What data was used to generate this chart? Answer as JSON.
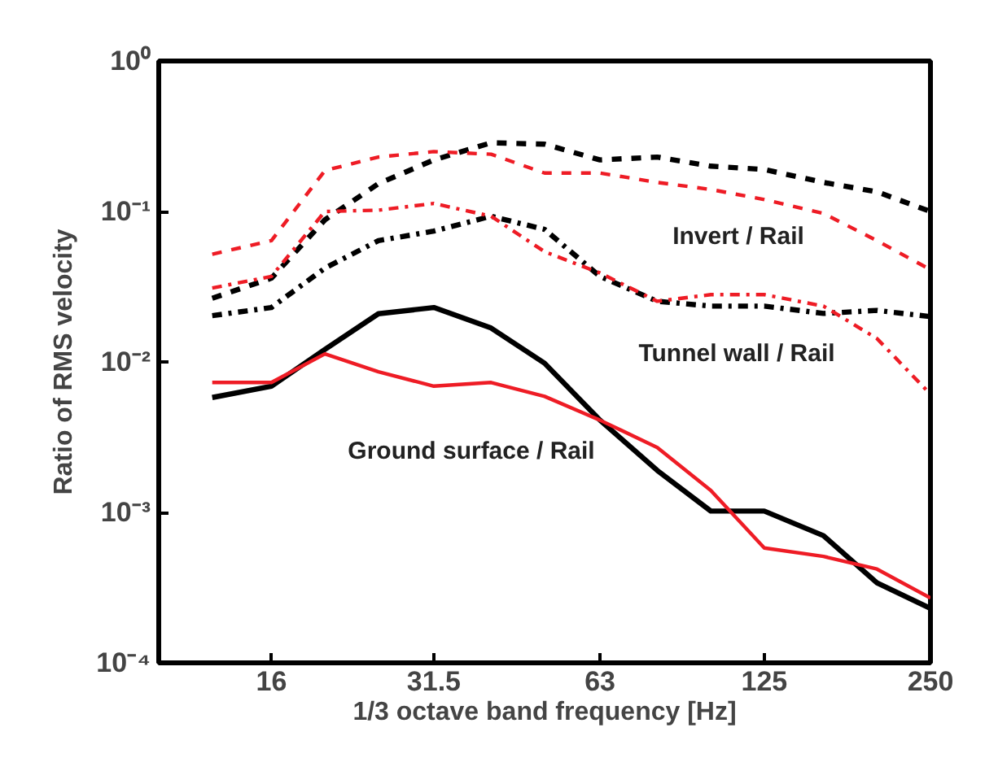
{
  "chart_data": {
    "type": "line",
    "xlabel": "1/3 octave band frequency [Hz]",
    "ylabel": "Ratio of RMS velocity",
    "x": [
      12.5,
      16,
      20,
      25,
      31.5,
      40,
      50,
      63,
      80,
      100,
      125,
      160,
      200,
      250
    ],
    "log": "xy",
    "xlim": [
      10,
      250
    ],
    "xticks": [
      16,
      31.5,
      63,
      125,
      250
    ],
    "ylim": [
      0.0001,
      1
    ],
    "yticks": [
      {
        "value": 0.0001,
        "label": "10⁻⁴"
      },
      {
        "value": 0.001,
        "label": "10⁻³"
      },
      {
        "value": 0.01,
        "label": "10⁻²"
      },
      {
        "value": 0.1,
        "label": "10⁻¹"
      },
      {
        "value": 1,
        "label": "10⁰"
      }
    ],
    "series": [
      {
        "color": "#000000",
        "line_style": "dashed",
        "values": [
          0.0265,
          0.036,
          0.088,
          0.153,
          0.22,
          0.286,
          0.28,
          0.22,
          0.23,
          0.2,
          0.19,
          0.156,
          0.135,
          0.1
        ]
      },
      {
        "color": "#ee1c25",
        "line_style": "dashed",
        "values": [
          0.052,
          0.064,
          0.187,
          0.23,
          0.25,
          0.24,
          0.18,
          0.18,
          0.156,
          0.14,
          0.12,
          0.097,
          0.064,
          0.041
        ]
      },
      {
        "color": "#000000",
        "line_style": "dashdot",
        "values": [
          0.0203,
          0.023,
          0.042,
          0.064,
          0.074,
          0.093,
          0.076,
          0.037,
          0.0253,
          0.0235,
          0.0235,
          0.021,
          0.022,
          0.02
        ]
      },
      {
        "color": "#ee1c25",
        "line_style": "dashdot",
        "values": [
          0.031,
          0.037,
          0.1,
          0.102,
          0.113,
          0.093,
          0.054,
          0.039,
          0.0253,
          0.028,
          0.028,
          0.0235,
          0.0143,
          0.0061
        ]
      },
      {
        "color": "#000000",
        "line_style": "solid",
        "values": [
          0.0058,
          0.0069,
          0.0121,
          0.0209,
          0.023,
          0.0168,
          0.0098,
          0.0041,
          0.0019,
          0.00102,
          0.00102,
          0.0007,
          0.00034,
          0.00023
        ]
      },
      {
        "color": "#ee1c25",
        "line_style": "solid",
        "values": [
          0.0073,
          0.0073,
          0.0113,
          0.0086,
          0.0069,
          0.0073,
          0.0059,
          0.0041,
          0.0027,
          0.0014,
          0.00058,
          0.00051,
          0.00042,
          0.00027
        ]
      }
    ],
    "annotations": [
      "Invert / Rail",
      "Tunnel wall / Rail",
      "Ground surface / Rail"
    ]
  }
}
